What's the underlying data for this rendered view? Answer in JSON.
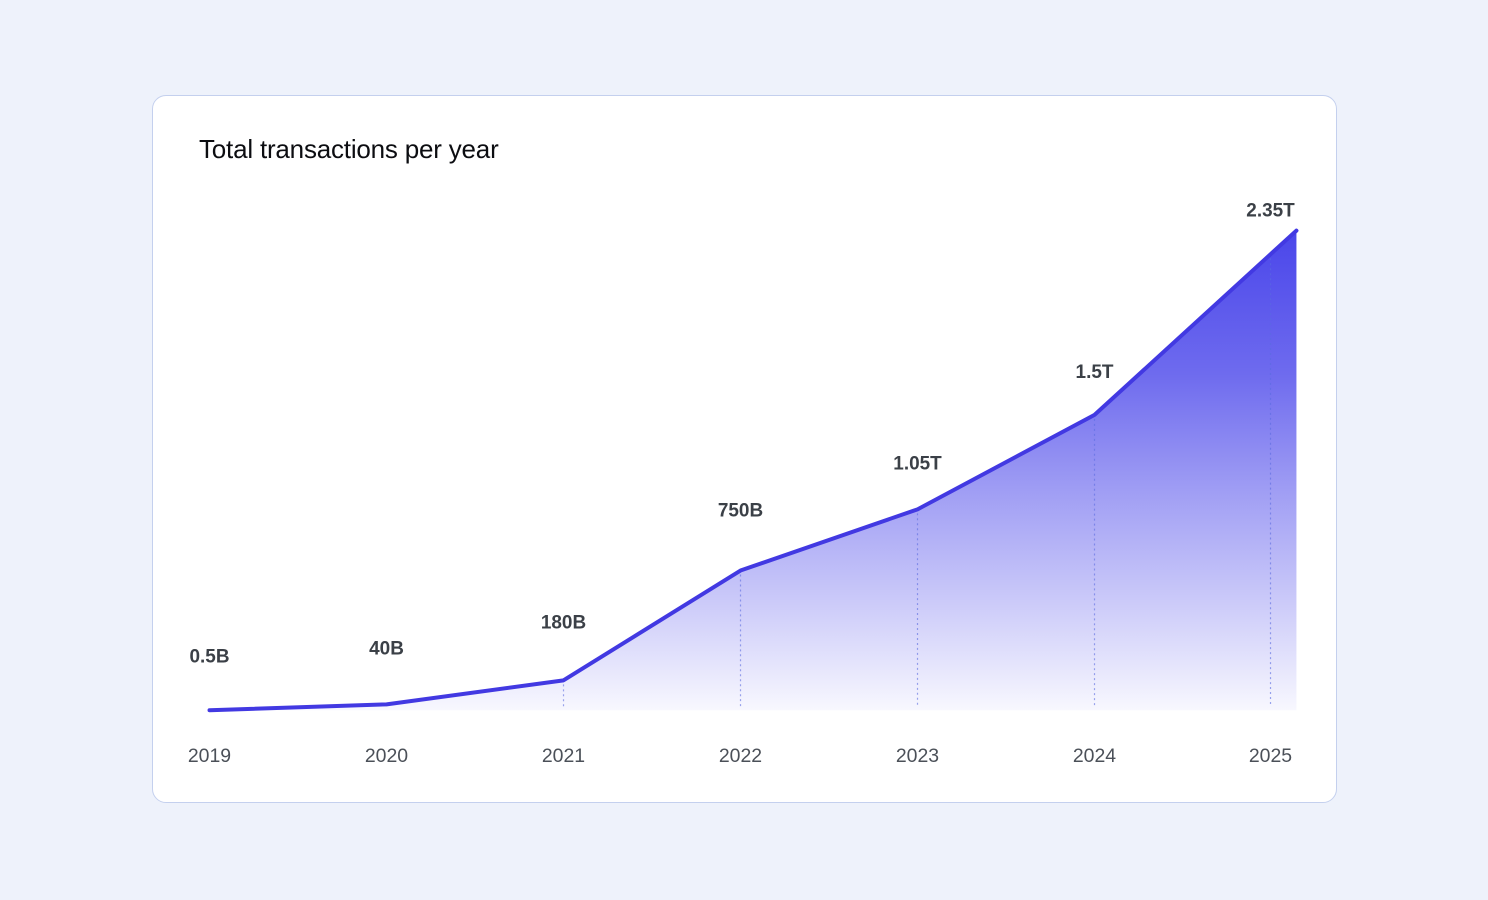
{
  "page": {
    "background": "#eef2fb"
  },
  "card": {
    "background": "#ffffff",
    "border_color": "#c4d0ee"
  },
  "chart_data": {
    "type": "area",
    "title": "Total transactions per year",
    "categories": [
      "2019",
      "2020",
      "2021",
      "2022",
      "2023",
      "2024",
      "2025"
    ],
    "values_in_billions": [
      0.5,
      40,
      180,
      750,
      1050,
      1500,
      2350
    ],
    "point_labels": [
      "0.5B",
      "40B",
      "180B",
      "750B",
      "1.05T",
      "1.5T",
      "2.35T"
    ],
    "xlabel": "",
    "ylabel": "",
    "ylim_billions": [
      0,
      2350
    ],
    "legend": "none",
    "grid": "dotted-vertical-guides-under-points",
    "colors": {
      "line": "#4239e2",
      "area_top": "#4a46ea",
      "guide": "#5a6ae0",
      "point_label": "#3b4047",
      "axis_label": "#4b5058",
      "title": "#0c0d11"
    }
  }
}
